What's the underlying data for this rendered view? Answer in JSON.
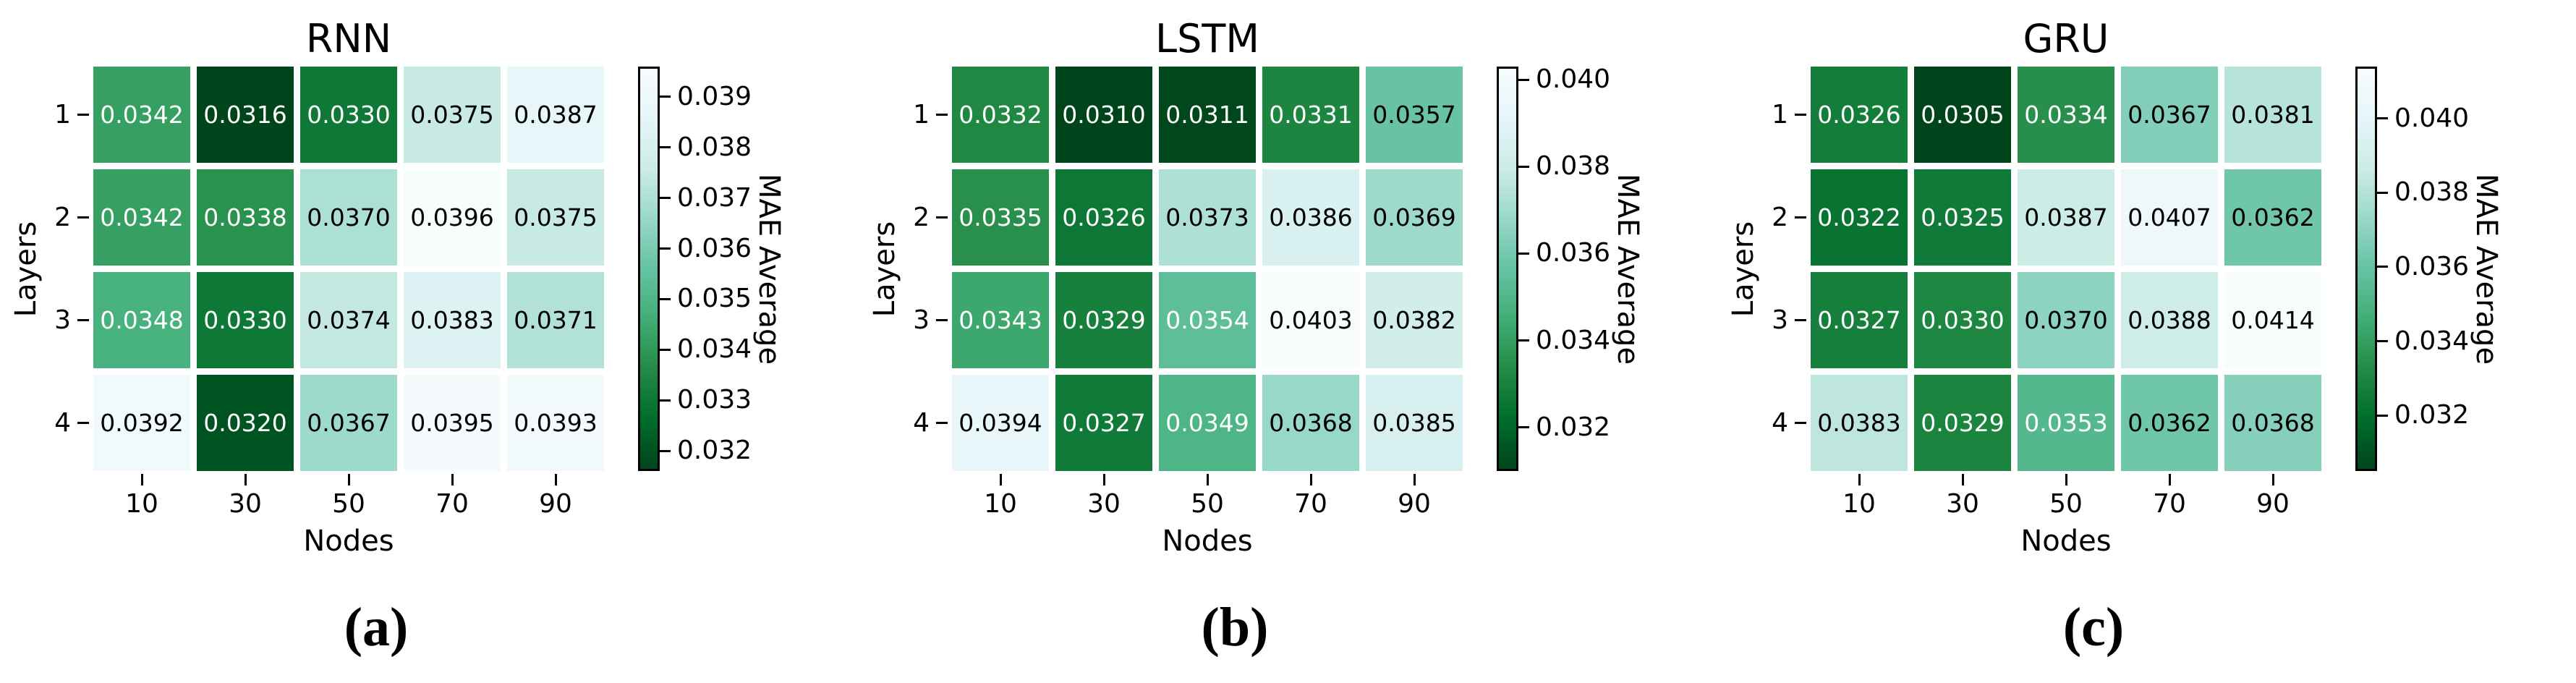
{
  "figure": {
    "background": "#ffffff",
    "text_color": "#000000",
    "annotation_light_text": "#ffffff",
    "annotation_dark_text": "#000000"
  },
  "colormap": {
    "name": "BuGn-reversed (low=dark green, high=pale blue-white)",
    "stops": [
      "#f7fcfd",
      "#e5f5f9",
      "#ccece6",
      "#99d8c9",
      "#66c2a4",
      "#41ae76",
      "#238b45",
      "#006d2c",
      "#00441b"
    ]
  },
  "chart_data": [
    {
      "type": "heatmap",
      "title": "RNN",
      "caption": "(a)",
      "xlabel": "Nodes",
      "ylabel": "Layers",
      "colorbar_label": "MAE Average",
      "x_ticks": [
        "10",
        "30",
        "50",
        "70",
        "90"
      ],
      "y_ticks": [
        "1",
        "2",
        "3",
        "4"
      ],
      "values": [
        [
          0.0342,
          0.0316,
          0.033,
          0.0375,
          0.0387
        ],
        [
          0.0342,
          0.0338,
          0.037,
          0.0396,
          0.0375
        ],
        [
          0.0348,
          0.033,
          0.0374,
          0.0383,
          0.0371
        ],
        [
          0.0392,
          0.032,
          0.0367,
          0.0395,
          0.0393
        ]
      ],
      "vmin": 0.0316,
      "vmax": 0.0396,
      "colorbar_ticks": [
        "0.039",
        "0.038",
        "0.037",
        "0.036",
        "0.035",
        "0.034",
        "0.033",
        "0.032"
      ]
    },
    {
      "type": "heatmap",
      "title": "LSTM",
      "caption": "(b)",
      "xlabel": "Nodes",
      "ylabel": "Layers",
      "colorbar_label": "MAE Average",
      "x_ticks": [
        "10",
        "30",
        "50",
        "70",
        "90"
      ],
      "y_ticks": [
        "1",
        "2",
        "3",
        "4"
      ],
      "values": [
        [
          0.0332,
          0.031,
          0.0311,
          0.0331,
          0.0357
        ],
        [
          0.0335,
          0.0326,
          0.0373,
          0.0386,
          0.0369
        ],
        [
          0.0343,
          0.0329,
          0.0354,
          0.0403,
          0.0382
        ],
        [
          0.0394,
          0.0327,
          0.0349,
          0.0368,
          0.0385
        ]
      ],
      "vmin": 0.031,
      "vmax": 0.0403,
      "colorbar_ticks": [
        "0.040",
        "0.038",
        "0.036",
        "0.034",
        "0.032"
      ]
    },
    {
      "type": "heatmap",
      "title": "GRU",
      "caption": "(c)",
      "xlabel": "Nodes",
      "ylabel": "Layers",
      "colorbar_label": "MAE Average",
      "x_ticks": [
        "10",
        "30",
        "50",
        "70",
        "90"
      ],
      "y_ticks": [
        "1",
        "2",
        "3",
        "4"
      ],
      "values": [
        [
          0.0326,
          0.0305,
          0.0334,
          0.0367,
          0.0381
        ],
        [
          0.0322,
          0.0325,
          0.0387,
          0.0407,
          0.0362
        ],
        [
          0.0327,
          0.033,
          0.037,
          0.0388,
          0.0414
        ],
        [
          0.0383,
          0.0329,
          0.0353,
          0.0362,
          0.0368
        ]
      ],
      "vmin": 0.0305,
      "vmax": 0.0414,
      "colorbar_ticks": [
        "0.040",
        "0.038",
        "0.036",
        "0.034",
        "0.032"
      ]
    }
  ]
}
